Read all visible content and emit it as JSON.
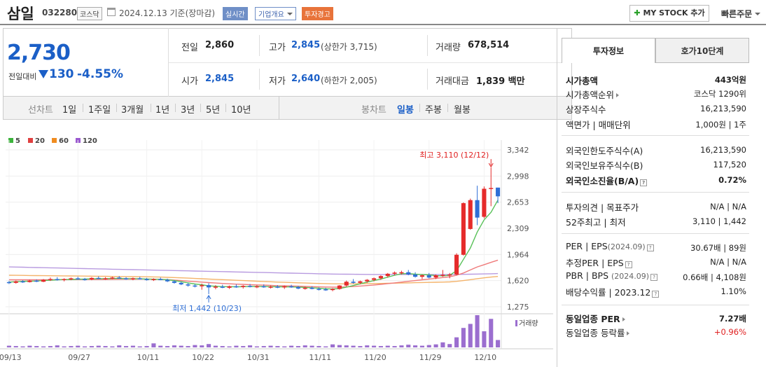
{
  "header": {
    "name": "삼일",
    "code": "032280",
    "market": "코스닥",
    "date": "2024.12.13 기준(장마감)",
    "realtime": "실시간",
    "company_overview": "기업개요",
    "warning": "투자경고",
    "mystock_label": "MY STOCK 추가",
    "quick_order": "빠른주문"
  },
  "summary": {
    "price": "2,730",
    "change_label": "전일대비",
    "change_value": "130",
    "change_pct": "-4.55%",
    "prev_label": "전일",
    "prev": "2,860",
    "high_label": "고가",
    "high": "2,845",
    "upper_limit": "(상한가 3,715)",
    "volume_label": "거래량",
    "volume": "678,514",
    "open_label": "시가",
    "open": "2,845",
    "low_label": "저가",
    "low": "2,640",
    "lower_limit": "(하한가 2,005)",
    "amount_label": "거래대금",
    "amount": "1,839",
    "amount_unit": "백만"
  },
  "toolbar": {
    "line_chart_label": "선차트",
    "line_periods": [
      "1일",
      "1주일",
      "3개월",
      "1년",
      "3년",
      "5년",
      "10년"
    ],
    "candle_label": "봉차트",
    "candle_periods": [
      "일봉",
      "주봉",
      "월봉"
    ],
    "candle_active": "일봉"
  },
  "chart_data": {
    "type": "candlestick",
    "legend": [
      {
        "name": "5",
        "color": "#3cb33c"
      },
      {
        "name": "20",
        "color": "#e04040"
      },
      {
        "name": "60",
        "color": "#f08c20"
      },
      {
        "name": "120",
        "color": "#9b59d0"
      }
    ],
    "y_ticks": [
      "3,342",
      "2,998",
      "2,653",
      "2,309",
      "1,964",
      "1,620",
      "1,275"
    ],
    "ylim": [
      1275,
      3342
    ],
    "x_ticks": [
      "09/13",
      "09/27",
      "10/11",
      "10/22",
      "10/31",
      "11/11",
      "11/20",
      "11/29",
      "12/10"
    ],
    "max_annotation": "최고 3,110 (12/12)",
    "min_annotation": "최저 1,442 (10/23)",
    "volume_label": "거래량",
    "candles": [
      [
        1600,
        1615,
        1575,
        1590
      ],
      [
        1590,
        1620,
        1580,
        1610
      ],
      [
        1610,
        1625,
        1590,
        1600
      ],
      [
        1600,
        1630,
        1595,
        1620
      ],
      [
        1620,
        1635,
        1600,
        1605
      ],
      [
        1605,
        1640,
        1600,
        1630
      ],
      [
        1630,
        1660,
        1615,
        1640
      ],
      [
        1640,
        1665,
        1620,
        1630
      ],
      [
        1630,
        1650,
        1610,
        1640
      ],
      [
        1640,
        1660,
        1625,
        1650
      ],
      [
        1650,
        1670,
        1630,
        1640
      ],
      [
        1640,
        1655,
        1620,
        1635
      ],
      [
        1635,
        1665,
        1625,
        1655
      ],
      [
        1655,
        1675,
        1640,
        1645
      ],
      [
        1645,
        1665,
        1630,
        1650
      ],
      [
        1650,
        1670,
        1640,
        1660
      ],
      [
        1660,
        1680,
        1645,
        1650
      ],
      [
        1650,
        1665,
        1630,
        1640
      ],
      [
        1640,
        1660,
        1625,
        1650
      ],
      [
        1650,
        1670,
        1635,
        1640
      ],
      [
        1640,
        1655,
        1620,
        1630
      ],
      [
        1630,
        1650,
        1615,
        1640
      ],
      [
        1640,
        1660,
        1625,
        1630
      ],
      [
        1630,
        1645,
        1600,
        1610
      ],
      [
        1610,
        1625,
        1580,
        1590
      ],
      [
        1590,
        1605,
        1560,
        1570
      ],
      [
        1570,
        1590,
        1540,
        1555
      ],
      [
        1555,
        1575,
        1530,
        1545
      ],
      [
        1545,
        1580,
        1500,
        1560
      ],
      [
        1560,
        1585,
        1442,
        1530
      ],
      [
        1530,
        1560,
        1505,
        1540
      ],
      [
        1540,
        1565,
        1520,
        1525
      ],
      [
        1525,
        1555,
        1510,
        1545
      ],
      [
        1545,
        1570,
        1525,
        1535
      ],
      [
        1535,
        1560,
        1515,
        1550
      ],
      [
        1550,
        1575,
        1530,
        1540
      ],
      [
        1540,
        1560,
        1520,
        1545
      ],
      [
        1545,
        1570,
        1525,
        1535
      ],
      [
        1535,
        1555,
        1515,
        1540
      ],
      [
        1540,
        1560,
        1520,
        1530
      ],
      [
        1530,
        1555,
        1510,
        1545
      ],
      [
        1545,
        1565,
        1525,
        1535
      ],
      [
        1535,
        1550,
        1505,
        1515
      ],
      [
        1515,
        1540,
        1500,
        1525
      ],
      [
        1525,
        1545,
        1505,
        1510
      ],
      [
        1510,
        1530,
        1490,
        1505
      ],
      [
        1505,
        1525,
        1485,
        1495
      ],
      [
        1495,
        1520,
        1480,
        1510
      ],
      [
        1510,
        1560,
        1500,
        1555
      ],
      [
        1555,
        1620,
        1540,
        1605
      ],
      [
        1605,
        1640,
        1580,
        1590
      ],
      [
        1590,
        1620,
        1570,
        1610
      ],
      [
        1610,
        1640,
        1590,
        1630
      ],
      [
        1630,
        1660,
        1610,
        1650
      ],
      [
        1650,
        1690,
        1630,
        1680
      ],
      [
        1680,
        1720,
        1660,
        1710
      ],
      [
        1710,
        1740,
        1690,
        1725
      ],
      [
        1725,
        1750,
        1700,
        1730
      ],
      [
        1730,
        1760,
        1690,
        1700
      ],
      [
        1700,
        1730,
        1660,
        1670
      ],
      [
        1670,
        1700,
        1640,
        1690
      ],
      [
        1690,
        1720,
        1650,
        1660
      ],
      [
        1660,
        1700,
        1640,
        1690
      ],
      [
        1690,
        1760,
        1670,
        1695
      ],
      [
        1695,
        1720,
        1650,
        1700
      ],
      [
        1700,
        1980,
        1690,
        1960
      ],
      [
        1960,
        2650,
        1950,
        2640
      ],
      [
        2300,
        2700,
        2290,
        2680
      ],
      [
        2680,
        2870,
        2350,
        2450
      ],
      [
        2460,
        2860,
        2440,
        2830
      ],
      [
        2840,
        3110,
        2600,
        2840
      ],
      [
        2845,
        2845,
        2640,
        2730
      ]
    ],
    "volumes": [
      5,
      4,
      3,
      5,
      4,
      3,
      4,
      6,
      3,
      4,
      5,
      3,
      4,
      5,
      4,
      3,
      6,
      4,
      5,
      3,
      4,
      12,
      5,
      4,
      6,
      5,
      4,
      7,
      6,
      10,
      5,
      4,
      3,
      5,
      4,
      6,
      3,
      4,
      5,
      4,
      3,
      5,
      4,
      6,
      5,
      4,
      3,
      9,
      7,
      6,
      5,
      4,
      6,
      5,
      4,
      5,
      4,
      6,
      8,
      6,
      5,
      7,
      9,
      15,
      10,
      30,
      58,
      70,
      96,
      48,
      85,
      22
    ],
    "ma5": [
      1600,
      1605,
      1610,
      1612,
      1615,
      1620,
      1625,
      1630,
      1633,
      1635,
      1638,
      1640,
      1642,
      1645,
      1645,
      1648,
      1648,
      1645,
      1645,
      1643,
      1640,
      1638,
      1636,
      1630,
      1620,
      1605,
      1590,
      1575,
      1565,
      1550,
      1545,
      1540,
      1540,
      1538,
      1540,
      1542,
      1543,
      1542,
      1540,
      1538,
      1538,
      1536,
      1534,
      1530,
      1525,
      1520,
      1512,
      1508,
      1515,
      1533,
      1555,
      1578,
      1600,
      1620,
      1640,
      1665,
      1690,
      1710,
      1712,
      1705,
      1700,
      1695,
      1685,
      1682,
      1690,
      1750,
      1900,
      2050,
      2260,
      2420,
      2520,
      2680
    ],
    "ma20": [
      1630,
      1630,
      1630,
      1630,
      1630,
      1630,
      1631,
      1632,
      1632,
      1633,
      1633,
      1634,
      1634,
      1635,
      1635,
      1636,
      1637,
      1638,
      1638,
      1639,
      1639,
      1638,
      1636,
      1632,
      1626,
      1620,
      1613,
      1606,
      1600,
      1593,
      1588,
      1582,
      1578,
      1573,
      1570,
      1566,
      1563,
      1560,
      1557,
      1553,
      1551,
      1549,
      1546,
      1543,
      1540,
      1537,
      1535,
      1533,
      1534,
      1537,
      1542,
      1548,
      1555,
      1562,
      1570,
      1580,
      1590,
      1600,
      1610,
      1620,
      1630,
      1640,
      1650,
      1660,
      1670,
      1690,
      1720,
      1760,
      1800,
      1830,
      1860,
      1890
    ],
    "ma60": [
      1690,
      1689,
      1688,
      1687,
      1686,
      1685,
      1684,
      1683,
      1682,
      1681,
      1680,
      1679,
      1678,
      1677,
      1676,
      1675,
      1674,
      1673,
      1672,
      1671,
      1670,
      1668,
      1666,
      1663,
      1660,
      1656,
      1652,
      1648,
      1644,
      1640,
      1636,
      1632,
      1628,
      1624,
      1620,
      1616,
      1612,
      1608,
      1604,
      1600,
      1597,
      1594,
      1591,
      1588,
      1585,
      1582,
      1580,
      1578,
      1577,
      1577,
      1578,
      1579,
      1580,
      1581,
      1582,
      1584,
      1586,
      1588,
      1590,
      1592,
      1594,
      1596,
      1598,
      1600,
      1603,
      1610,
      1620,
      1632,
      1645,
      1656,
      1666,
      1675
    ],
    "ma120": [
      1800,
      1798,
      1796,
      1794,
      1792,
      1790,
      1788,
      1786,
      1784,
      1782,
      1780,
      1778,
      1776,
      1774,
      1772,
      1770,
      1768,
      1766,
      1764,
      1762,
      1760,
      1758,
      1756,
      1754,
      1752,
      1750,
      1748,
      1746,
      1744,
      1742,
      1740,
      1738,
      1736,
      1734,
      1732,
      1730,
      1728,
      1726,
      1724,
      1722,
      1720,
      1718,
      1716,
      1714,
      1712,
      1710,
      1708,
      1706,
      1705,
      1704,
      1703,
      1702,
      1701,
      1700,
      1700,
      1700,
      1700,
      1700,
      1700,
      1700,
      1700,
      1700,
      1700,
      1700,
      1700,
      1701,
      1702,
      1704,
      1706,
      1708,
      1710,
      1712
    ]
  },
  "right_panel": {
    "tab_invest": "투자정보",
    "tab_hoga": "호가10단계",
    "market_cap_label": "시가총액",
    "market_cap": "443억원",
    "cap_rank_label": "시가총액순위",
    "cap_rank": "코스닥 1290위",
    "shares_label": "상장주식수",
    "shares": "16,213,590",
    "par_label": "액면가 | 매매단위",
    "par": "1,000원 | 1주",
    "foreign_limit_label": "외국인한도주식수(A)",
    "foreign_limit": "16,213,590",
    "foreign_hold_label": "외국인보유주식수(B)",
    "foreign_hold": "117,520",
    "foreign_ratio_label": "외국인소진율(B/A)",
    "foreign_ratio": "0.72%",
    "opinion_label": "투자의견 | 목표주가",
    "opinion": "N/A | N/A",
    "w52_label": "52주최고 | 최저",
    "w52": "3,110 | 1,442",
    "per_label": "PER | EPS",
    "per_period": "(2024.09)",
    "per": "30.67배 | 89원",
    "est_per_label": "추정PER | EPS",
    "est_per": "N/A | N/A",
    "pbr_label": "PBR | BPS",
    "pbr_period": "(2024.09)",
    "pbr": "0.66배 | 4,108원",
    "div_label": "배당수익률 | 2023.12",
    "div": "1.10%",
    "sector_per_label": "동일업종 PER",
    "sector_per": "7.27배",
    "sector_chg_label": "동일업종 등락률",
    "sector_chg": "+0.96%"
  }
}
